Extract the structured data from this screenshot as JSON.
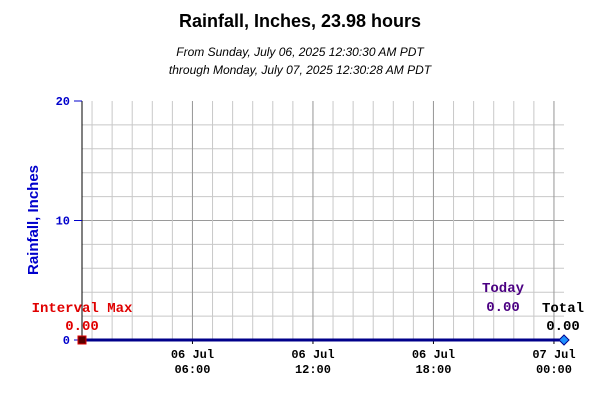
{
  "header": {
    "title": "Rainfall, Inches, 23.98 hours",
    "range_from": "From Sunday, July 06, 2025 12:30:30 AM PDT",
    "range_through": "through Monday, July 07, 2025 12:30:28 AM PDT"
  },
  "annotations": {
    "interval_max_label": "Interval Max",
    "interval_max_value": "0.00",
    "today_label": "Today",
    "today_value": "0.00",
    "total_label": "Total",
    "total_value": "0.00"
  },
  "colors": {
    "series": "#00008b",
    "axis_label": "#0000cc",
    "interval_max": "#e00000",
    "today": "#4b0082",
    "total": "#000000",
    "grid": "#c8c8c8",
    "grid_major": "#9a9a9a"
  },
  "chart_data": {
    "type": "line",
    "title": "Rainfall, Inches, 23.98 hours",
    "subtitle": "From Sunday, July 06, 2025 12:30:30 AM PDT through Monday, July 07, 2025 12:30:28 AM PDT",
    "xlabel": "",
    "ylabel": "Rainfall, Inches",
    "ylim": [
      0,
      20
    ],
    "xlim": [
      "2025-07-06 00:30",
      "2025-07-07 00:30"
    ],
    "yticks": [
      {
        "value": 0,
        "label": "0"
      },
      {
        "value": 10,
        "label": "10"
      },
      {
        "value": 20,
        "label": "20"
      }
    ],
    "xticks": [
      {
        "time": "2025-07-06 06:00",
        "label_day": "06 Jul",
        "label_time": "06:00"
      },
      {
        "time": "2025-07-06 12:00",
        "label_day": "06 Jul",
        "label_time": "12:00"
      },
      {
        "time": "2025-07-06 18:00",
        "label_day": "06 Jul",
        "label_time": "18:00"
      },
      {
        "time": "2025-07-07 00:00",
        "label_day": "07 Jul",
        "label_time": "00:00"
      }
    ],
    "grid": true,
    "series": [
      {
        "x": [
          "2025-07-06 00:30",
          "2025-07-07 00:30"
        ],
        "values": [
          0,
          0
        ]
      }
    ],
    "markers": [
      {
        "kind": "interval-max",
        "x": "2025-07-06 00:30",
        "value": 0
      },
      {
        "kind": "total",
        "x": "2025-07-07 00:30",
        "value": 0
      }
    ]
  }
}
